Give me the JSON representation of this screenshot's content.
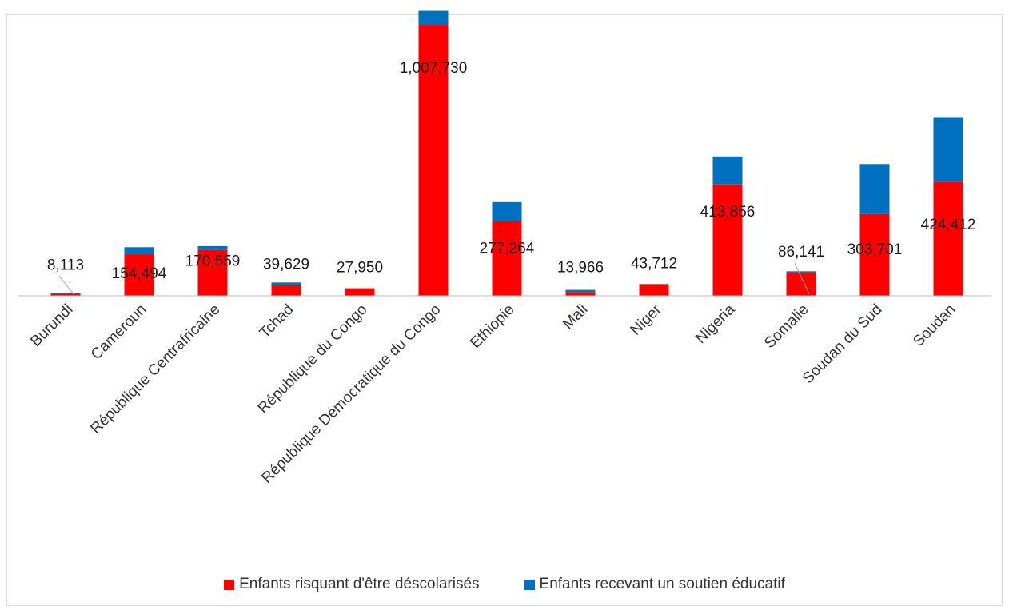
{
  "chart_data": {
    "type": "bar",
    "stacked": true,
    "categories": [
      "Burundi",
      "Cameroun",
      "République Centrafricaine",
      "Tchad",
      "République du Congo",
      "République Démocratique du Congo",
      "Ethiopie",
      "Mali",
      "Niger",
      "Nigeria",
      "Somalie",
      "Soudan du Sud",
      "Soudan"
    ],
    "series": [
      {
        "name": "Enfants risquant d'être déscolarisés",
        "color": "#ff0000",
        "values": [
          8113,
          154494,
          170559,
          39629,
          27950,
          1007730,
          277264,
          13966,
          43712,
          413856,
          86141,
          303701,
          424412
        ],
        "labels": [
          "8,113",
          "154,494",
          "170,559",
          "39,629",
          "27,950",
          "1,007,730",
          "277,264",
          "13,966",
          "43,712",
          "413,856",
          "86,141",
          "303,701",
          "424,412"
        ]
      },
      {
        "name": "Enfants recevant un soutien éducatif",
        "color": "#0070c0",
        "values": [
          2000,
          26000,
          14000,
          10000,
          0,
          52000,
          71000,
          8000,
          0,
          104000,
          5000,
          186000,
          240000
        ]
      }
    ],
    "ylim": [
      0,
      1100000
    ],
    "grid": false,
    "legend": "bottom"
  }
}
